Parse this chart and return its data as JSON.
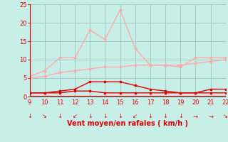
{
  "x": [
    9,
    10,
    11,
    12,
    13,
    14,
    15,
    16,
    17,
    18,
    19,
    20,
    21,
    22
  ],
  "rafales": [
    5.5,
    7.0,
    10.5,
    10.5,
    18.0,
    15.5,
    23.5,
    13.0,
    8.5,
    8.5,
    8.0,
    10.5,
    10.5,
    10.5
  ],
  "moyen": [
    5.0,
    5.5,
    6.5,
    7.0,
    7.5,
    8.0,
    8.0,
    8.5,
    8.5,
    8.5,
    8.5,
    9.0,
    9.5,
    10.0
  ],
  "dark_line": [
    1.0,
    1.0,
    1.5,
    2.0,
    4.0,
    4.0,
    4.0,
    3.0,
    2.0,
    1.5,
    1.0,
    1.0,
    2.0,
    2.0
  ],
  "min_line": [
    1.0,
    1.0,
    1.0,
    1.5,
    1.5,
    1.0,
    1.0,
    1.0,
    1.0,
    1.0,
    1.0,
    1.0,
    1.0,
    1.0
  ],
  "wind_dirs": [
    "↓",
    "↘",
    "↓",
    "↙",
    "↓",
    "↓",
    "↓",
    "↙",
    "↓",
    "↓",
    "↓",
    "→",
    "→",
    "↘"
  ],
  "ylim": [
    0,
    25
  ],
  "xlim": [
    9,
    22
  ],
  "yticks": [
    0,
    5,
    10,
    15,
    20,
    25
  ],
  "xticks": [
    9,
    10,
    11,
    12,
    13,
    14,
    15,
    16,
    17,
    18,
    19,
    20,
    21,
    22
  ],
  "xlabel": "Vent moyen/en rafales ( km/h )",
  "bg_color": "#c8eee8",
  "grid_color": "#a0ccc4",
  "line_rafales_color": "#ffaaaa",
  "line_moyen_color": "#ffaaaa",
  "line_dark_color": "#dd0000",
  "line_min_color": "#dd0000",
  "axis_color": "#dd0000",
  "tick_color": "#dd0000",
  "xlabel_color": "#dd0000",
  "spine_color": "#888888"
}
